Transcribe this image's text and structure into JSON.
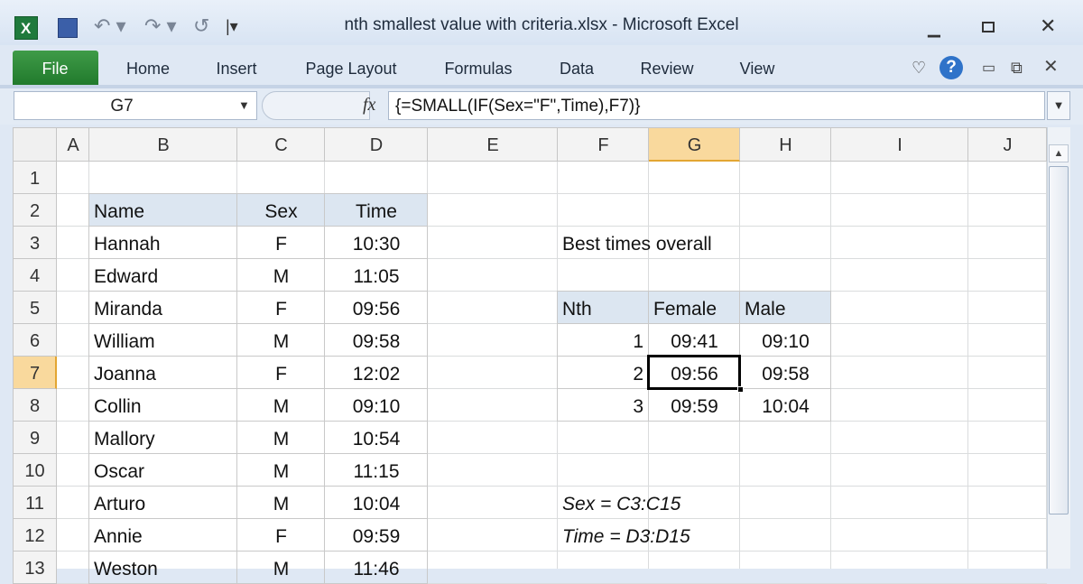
{
  "window": {
    "title": "nth smallest value with criteria.xlsx  -  Microsoft Excel"
  },
  "ribbon": {
    "tabs": [
      "File",
      "Home",
      "Insert",
      "Page Layout",
      "Formulas",
      "Data",
      "Review",
      "View"
    ]
  },
  "formula_bar": {
    "name_box": "G7",
    "formula": "{=SMALL(IF(Sex=\"F\",Time),F7)}"
  },
  "columns": [
    "A",
    "B",
    "C",
    "D",
    "E",
    "F",
    "G",
    "H",
    "I",
    "J"
  ],
  "rows": [
    1,
    2,
    3,
    4,
    5,
    6,
    7,
    8,
    9,
    10,
    11,
    12,
    13
  ],
  "data_table": {
    "header": [
      "Name",
      "Sex",
      "Time"
    ],
    "rows": [
      [
        "Hannah",
        "F",
        "10:30"
      ],
      [
        "Edward",
        "M",
        "11:05"
      ],
      [
        "Miranda",
        "F",
        "09:56"
      ],
      [
        "William",
        "M",
        "09:58"
      ],
      [
        "Joanna",
        "F",
        "12:02"
      ],
      [
        "Collin",
        "M",
        "09:10"
      ],
      [
        "Mallory",
        "M",
        "10:54"
      ],
      [
        "Oscar",
        "M",
        "11:15"
      ],
      [
        "Arturo",
        "M",
        "10:04"
      ],
      [
        "Annie",
        "F",
        "09:59"
      ],
      [
        "Weston",
        "M",
        "11:46"
      ]
    ]
  },
  "results": {
    "title": "Best times overall",
    "header": [
      "Nth",
      "Female",
      "Male"
    ],
    "rows": [
      [
        1,
        "09:41",
        "09:10"
      ],
      [
        2,
        "09:56",
        "09:58"
      ],
      [
        3,
        "09:59",
        "10:04"
      ]
    ]
  },
  "notes": [
    "Sex = C3:C15",
    "Time = D3:D15"
  ]
}
